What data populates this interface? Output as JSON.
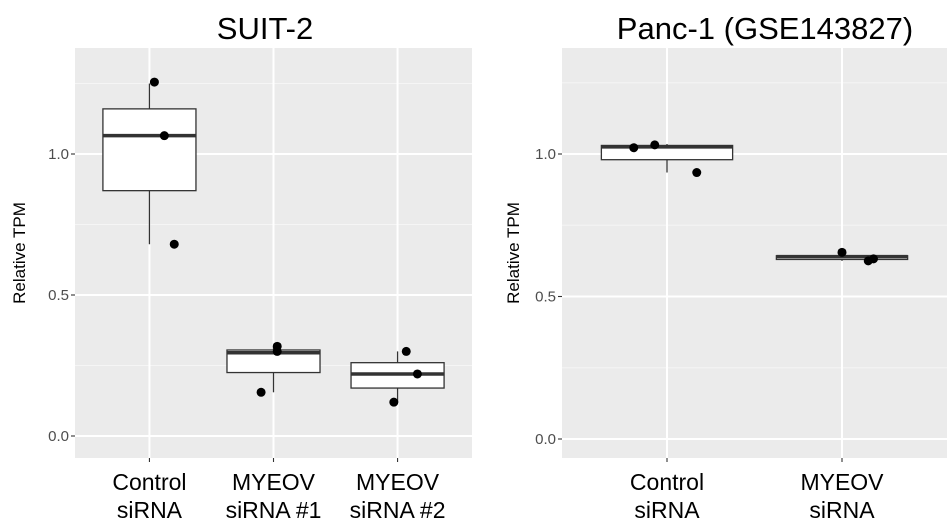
{
  "chart_data": [
    {
      "type": "box",
      "title": "SUIT-2",
      "ylabel": "Relative TPM",
      "ylim": [
        -0.06,
        1.35
      ],
      "yticks": [
        "0.0",
        "0.5",
        "1.0"
      ],
      "categories": [
        [
          "Control",
          "siRNA"
        ],
        [
          "MYEOV",
          "siRNA #1"
        ],
        [
          "MYEOV",
          "siRNA #2"
        ]
      ],
      "boxes": [
        {
          "q1": 0.87,
          "median": 1.065,
          "q3": 1.16,
          "whisker_low": 0.68,
          "whisker_high": 1.25
        },
        {
          "q1": 0.225,
          "median": 0.295,
          "q3": 0.305,
          "whisker_low": 0.155,
          "whisker_high": 0.315
        },
        {
          "q1": 0.17,
          "median": 0.22,
          "q3": 0.26,
          "whisker_low": 0.12,
          "whisker_high": 0.3
        }
      ],
      "points": [
        [
          {
            "dx": 0.04,
            "y": 1.255
          },
          {
            "dx": 0.12,
            "y": 1.065
          },
          {
            "dx": 0.2,
            "y": 0.68
          }
        ],
        [
          {
            "dx": -0.1,
            "y": 0.155
          },
          {
            "dx": 0.03,
            "y": 0.318
          },
          {
            "dx": 0.03,
            "y": 0.3
          }
        ],
        [
          {
            "dx": -0.03,
            "y": 0.12
          },
          {
            "dx": 0.07,
            "y": 0.3
          },
          {
            "dx": 0.16,
            "y": 0.22
          }
        ]
      ]
    },
    {
      "type": "box",
      "title": "Panc-1 (GSE143827)",
      "ylabel": "Relative TPM",
      "ylim": [
        -0.02,
        1.34
      ],
      "yticks": [
        "0.0",
        "0.5",
        "1.0"
      ],
      "categories": [
        [
          "Control",
          "siRNA"
        ],
        [
          "MYEOV",
          "siRNA"
        ]
      ],
      "boxes": [
        {
          "q1": 0.98,
          "median": 1.025,
          "q3": 1.03,
          "whisker_low": 0.935,
          "whisker_high": 1.035
        },
        {
          "q1": 0.63,
          "median": 0.64,
          "q3": 0.643,
          "whisker_low": 0.625,
          "whisker_high": 0.655
        }
      ],
      "points": [
        [
          {
            "dx": -0.19,
            "y": 1.022
          },
          {
            "dx": -0.07,
            "y": 1.032
          },
          {
            "dx": 0.17,
            "y": 0.935
          }
        ],
        [
          {
            "dx": 0.0,
            "y": 0.655
          },
          {
            "dx": 0.15,
            "y": 0.625
          },
          {
            "dx": 0.18,
            "y": 0.632
          }
        ]
      ]
    }
  ]
}
